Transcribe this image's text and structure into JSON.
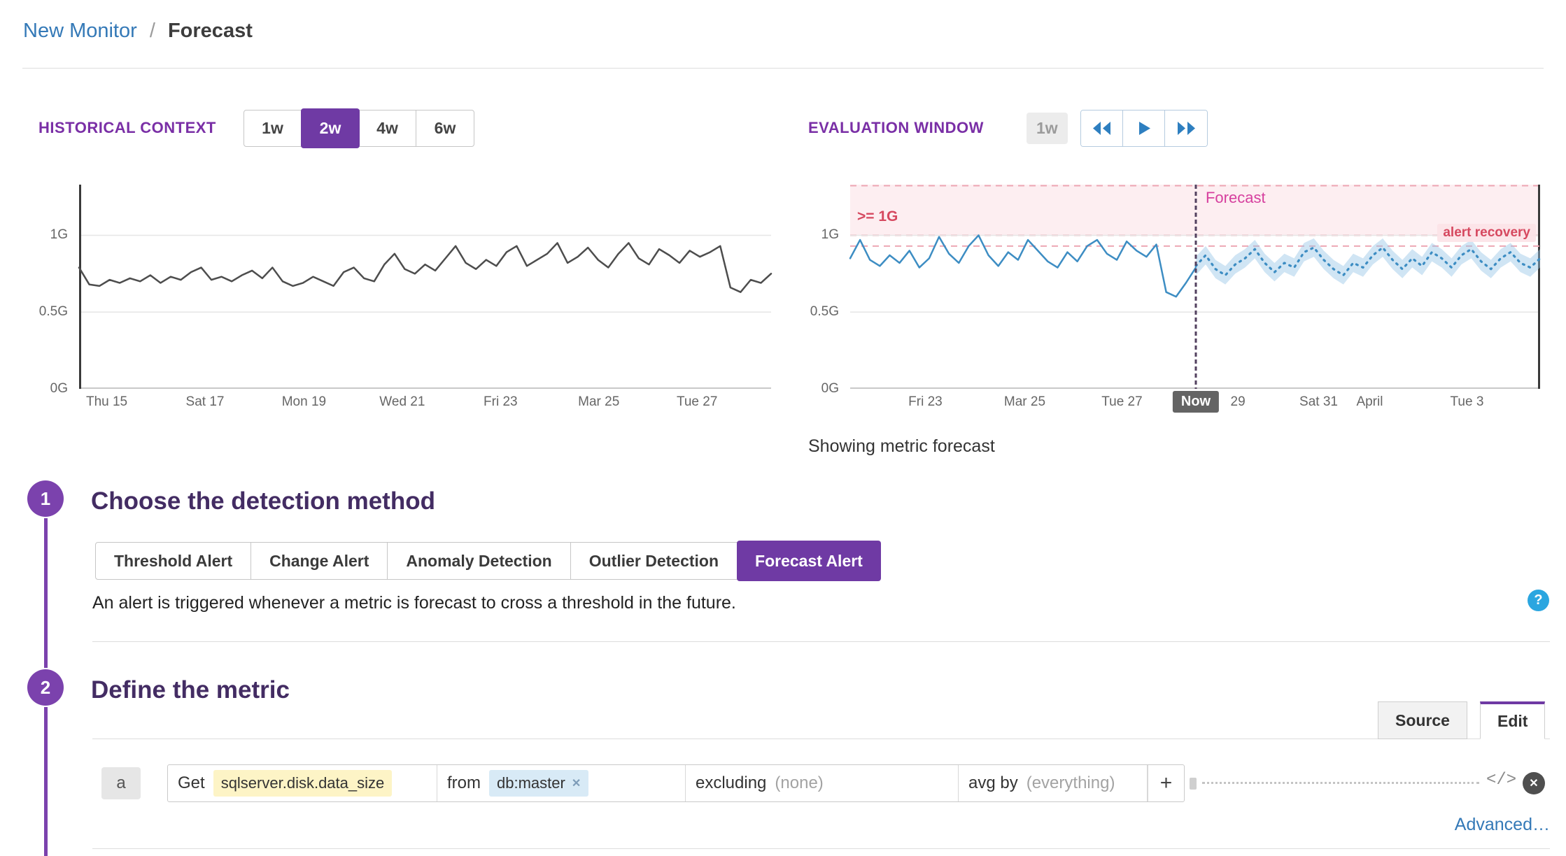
{
  "colors": {
    "accent_purple": "#6f3aa4",
    "link_blue": "#3479b7",
    "historical_line": "#4d4d4d",
    "series_blue": "#3d8dc3",
    "threshold_red": "#d6485f",
    "forecast_magenta": "#d63f9e"
  },
  "breadcrumb": {
    "link": "New Monitor",
    "separator": "/",
    "current": "Forecast"
  },
  "historical_context": {
    "label": "HISTORICAL CONTEXT",
    "options": [
      {
        "label": "1w",
        "selected": false
      },
      {
        "label": "2w",
        "selected": true
      },
      {
        "label": "4w",
        "selected": false
      },
      {
        "label": "6w",
        "selected": false
      }
    ]
  },
  "evaluation_window": {
    "label": "EVALUATION WINDOW",
    "window_badge": "1w",
    "controls": [
      {
        "name": "rewind"
      },
      {
        "name": "play"
      },
      {
        "name": "fast-forward"
      }
    ]
  },
  "caption": "Showing metric forecast",
  "steps": [
    {
      "number": "1",
      "title": "Choose the detection method"
    },
    {
      "number": "2",
      "title": "Define the metric"
    }
  ],
  "detection": {
    "methods": [
      {
        "label": "Threshold Alert",
        "selected": false
      },
      {
        "label": "Change Alert",
        "selected": false
      },
      {
        "label": "Anomaly Detection",
        "selected": false
      },
      {
        "label": "Outlier Detection",
        "selected": false
      },
      {
        "label": "Forecast Alert",
        "selected": true
      }
    ],
    "description": "An alert is triggered whenever a metric is forecast to cross a threshold in the future.",
    "help_glyph": "?"
  },
  "metric_tabs": [
    {
      "label": "Source",
      "selected": false
    },
    {
      "label": "Edit",
      "selected": true
    }
  ],
  "query": {
    "letter": "a",
    "get_label": "Get",
    "metric": "sqlserver.disk.data_size",
    "from_label": "from",
    "from_tag": "db:master",
    "remove_glyph": "✕",
    "excluding_label": "excluding",
    "excluding_value": "(none)",
    "avgby_label": "avg by",
    "avgby_value": "(everything)",
    "add_label": "+",
    "code_icon": "</>",
    "close_glyph": "✕",
    "advanced": "Advanced…"
  },
  "chart_data": [
    {
      "type": "line",
      "name": "historical-context-chart",
      "ylim": [
        0,
        1.33
      ],
      "axis_left": true,
      "y_ticks": [
        {
          "label": "1G",
          "v": 1
        },
        {
          "label": "0.5G",
          "v": 0.5
        },
        {
          "label": "0G",
          "v": 0
        }
      ],
      "x_ticks": [
        {
          "label": "Thu 15",
          "f": 0.04
        },
        {
          "label": "Sat 17",
          "f": 0.182
        },
        {
          "label": "Mon 19",
          "f": 0.325
        },
        {
          "label": "Wed 21",
          "f": 0.467
        },
        {
          "label": "Fri 23",
          "f": 0.609
        },
        {
          "label": "Mar 25",
          "f": 0.751
        },
        {
          "label": "Tue 27",
          "f": 0.893
        }
      ],
      "series": [
        {
          "name": "sqlserver.disk.data_size",
          "color": "#4d4d4d",
          "width": 2.5,
          "values": [
            0.79,
            0.68,
            0.67,
            0.71,
            0.69,
            0.72,
            0.7,
            0.74,
            0.69,
            0.73,
            0.71,
            0.76,
            0.79,
            0.71,
            0.73,
            0.7,
            0.74,
            0.77,
            0.72,
            0.79,
            0.7,
            0.67,
            0.69,
            0.73,
            0.7,
            0.67,
            0.76,
            0.79,
            0.72,
            0.7,
            0.81,
            0.88,
            0.78,
            0.75,
            0.81,
            0.77,
            0.85,
            0.93,
            0.82,
            0.78,
            0.84,
            0.8,
            0.89,
            0.93,
            0.8,
            0.84,
            0.88,
            0.95,
            0.82,
            0.86,
            0.92,
            0.84,
            0.79,
            0.88,
            0.95,
            0.85,
            0.81,
            0.91,
            0.87,
            0.82,
            0.9,
            0.86,
            0.89,
            0.93,
            0.66,
            0.63,
            0.71,
            0.69,
            0.75
          ]
        }
      ]
    },
    {
      "type": "line",
      "name": "evaluation-window-chart",
      "ylim": [
        0,
        1.33
      ],
      "axis_right": true,
      "threshold": {
        "label": ">= 1G",
        "value": 1.0
      },
      "recovery": {
        "label": "alert recovery",
        "value": 0.93
      },
      "forecast_label": "Forecast",
      "now_f": 0.501,
      "y_ticks": [
        {
          "label": "1G",
          "v": 1
        },
        {
          "label": "0.5G",
          "v": 0.5
        },
        {
          "label": "0G",
          "v": 0
        }
      ],
      "x_ticks": [
        {
          "label": "Fri 23",
          "f": 0.109
        },
        {
          "label": "Mar 25",
          "f": 0.253
        },
        {
          "label": "Tue 27",
          "f": 0.394
        },
        {
          "label": "Now",
          "f": 0.501,
          "badge": true
        },
        {
          "label": "29",
          "f": 0.562
        },
        {
          "label": "Sat 31",
          "f": 0.679
        },
        {
          "label": "April",
          "f": 0.753
        },
        {
          "label": "Tue 3",
          "f": 0.894
        }
      ],
      "series": [
        {
          "name": "actual",
          "color": "#3d8dc3",
          "width": 2.5,
          "span": [
            0,
            0.501
          ],
          "values": [
            0.85,
            0.97,
            0.84,
            0.8,
            0.87,
            0.82,
            0.9,
            0.79,
            0.85,
            0.99,
            0.88,
            0.82,
            0.93,
            1.0,
            0.87,
            0.8,
            0.89,
            0.84,
            0.97,
            0.9,
            0.83,
            0.79,
            0.89,
            0.83,
            0.93,
            0.97,
            0.88,
            0.84,
            0.96,
            0.9,
            0.86,
            0.94,
            0.63,
            0.6,
            0.69,
            0.79
          ]
        },
        {
          "name": "forecast",
          "color": "#3d8dc3",
          "width": 3.2,
          "dash": "2 7",
          "span": [
            0.501,
            1
          ],
          "band": 0.06,
          "band_color": "rgba(150,198,230,0.45)",
          "values": [
            0.8,
            0.87,
            0.78,
            0.74,
            0.81,
            0.85,
            0.91,
            0.82,
            0.76,
            0.82,
            0.79,
            0.89,
            0.92,
            0.84,
            0.78,
            0.74,
            0.82,
            0.79,
            0.87,
            0.92,
            0.84,
            0.78,
            0.85,
            0.8,
            0.89,
            0.85,
            0.79,
            0.87,
            0.91,
            0.83,
            0.78,
            0.85,
            0.89,
            0.82,
            0.79,
            0.85
          ]
        }
      ]
    }
  ]
}
